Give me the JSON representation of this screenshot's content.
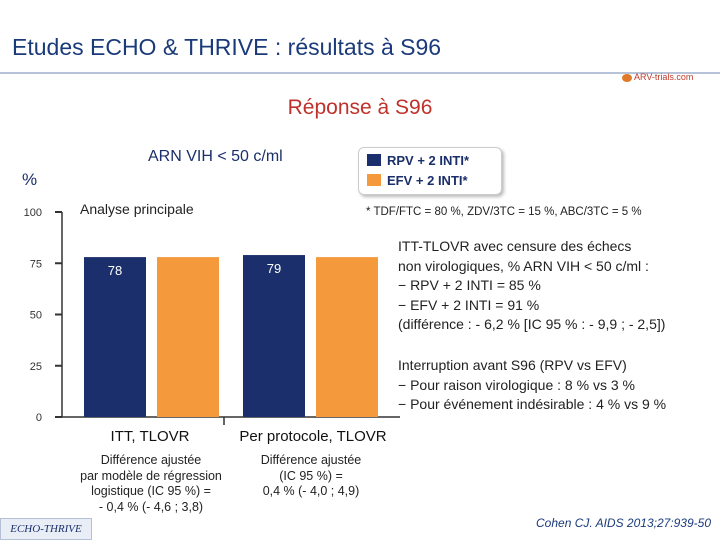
{
  "header": {
    "title": "Etudes ECHO & THRIVE : résultats à S96",
    "logo_text": "ARV-trials.com"
  },
  "subtitle": "Réponse à S96",
  "chart_heading": "ARN VIH < 50 c/ml",
  "analysis_label": "Analyse principale",
  "footnote": "* TDF/FTC = 80 %, ZDV/3TC = 15 %, ABC/3TC = 5 %",
  "colors": {
    "rpv": "#1a2f6b",
    "efv": "#f59a3c",
    "axis": "#333333"
  },
  "chart_data": {
    "type": "bar",
    "ylabel": "%",
    "ylim": [
      0,
      100
    ],
    "yticks": [
      0,
      25,
      50,
      75,
      100
    ],
    "grid": false,
    "legend_position": "top-right",
    "categories": [
      "ITT, TLOVR",
      "Per protocole, TLOVR"
    ],
    "series": [
      {
        "name": "RPV + 2 INTI*",
        "values": [
          78,
          79
        ],
        "labels": [
          "78",
          "79"
        ]
      },
      {
        "name": "EFV + 2 INTI*",
        "values": [
          78,
          78
        ],
        "labels": [
          "78",
          "78"
        ]
      }
    ],
    "differences": [
      [
        "Différence ajustée",
        "par modèle de régression",
        "logistique (IC 95 %) =",
        "- 0,4 % (- 4,6 ; 3,8)"
      ],
      [
        "Différence ajustée",
        "(IC 95 %) =",
        "0,4 % (- 4,0 ; 4,9)"
      ]
    ]
  },
  "itt_block": [
    "ITT-TLOVR avec censure des échecs",
    "non virologiques, % ARN VIH < 50 c/ml :",
    "− RPV + 2 INTI = 85 %",
    "− EFV + 2 INTI = 91 %",
    "(différence : - 6,2 % [IC 95 % : - 9,9 ; - 2,5])"
  ],
  "stop_block": [
    "Interruption avant S96 (RPV vs EFV)",
    "− Pour raison virologique : 8 % vs 3 %",
    "− Pour événement indésirable : 4 % vs 9 %"
  ],
  "badge": "ECHO-THRIVE",
  "citation": "Cohen CJ. AIDS 2013;27:939-50"
}
